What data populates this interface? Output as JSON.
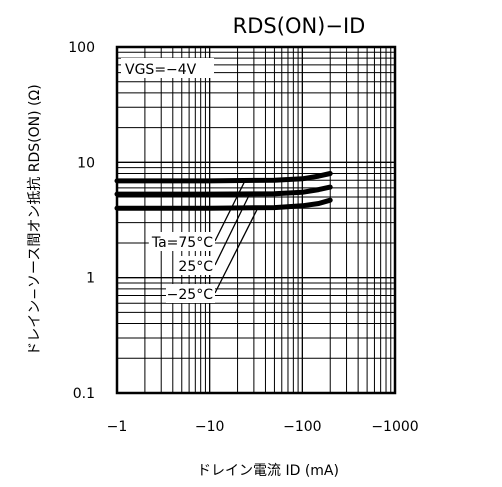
{
  "chart_data": {
    "type": "line",
    "title": "RDS(ON)−ID",
    "xlabel": "ドレイン電流 ID (mA)",
    "ylabel": "ドレイン−ソース間オン抵抗 RDS(ON) (Ω)",
    "x_scale": "log",
    "y_scale": "log",
    "xlim": [
      -1,
      -1000
    ],
    "ylim": [
      0.1,
      100
    ],
    "x_ticks": [
      -1,
      -10,
      -100,
      -1000
    ],
    "x_tick_labels": [
      "−1",
      "−10",
      "−100",
      "−1000"
    ],
    "y_ticks": [
      0.1,
      1,
      10,
      100
    ],
    "y_tick_labels": [
      "0.1",
      "1",
      "10",
      "100"
    ],
    "grid": true,
    "condition": "VGS=−4V",
    "series": [
      {
        "name": "Ta=75°C",
        "x": [
          -1,
          -10,
          -50,
          -100,
          -150,
          -200
        ],
        "y": [
          6.9,
          6.9,
          7.0,
          7.2,
          7.6,
          8.0
        ]
      },
      {
        "name": "25°C",
        "x": [
          -1,
          -10,
          -50,
          -100,
          -150,
          -200
        ],
        "y": [
          5.3,
          5.3,
          5.35,
          5.5,
          5.8,
          6.1
        ]
      },
      {
        "name": "−25°C",
        "x": [
          -1,
          -10,
          -50,
          -100,
          -150,
          -200
        ],
        "y": [
          4.0,
          4.0,
          4.05,
          4.2,
          4.4,
          4.7
        ]
      }
    ]
  }
}
